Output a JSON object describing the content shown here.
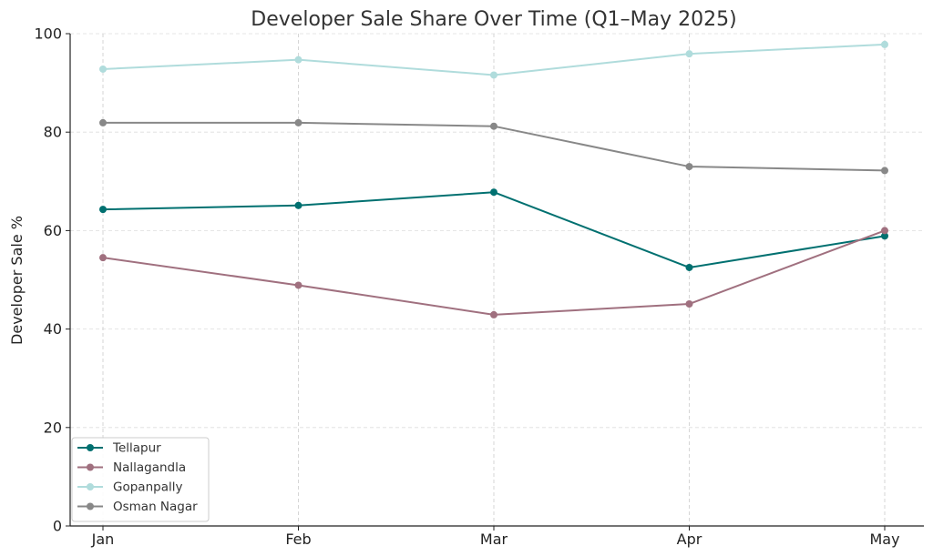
{
  "chart_data": {
    "type": "line",
    "title": "Developer Sale Share Over Time (Q1–May 2025)",
    "xlabel": "",
    "ylabel": "Developer Sale %",
    "categories": [
      "Jan",
      "Feb",
      "Mar",
      "Apr",
      "May"
    ],
    "ylim": [
      0,
      100
    ],
    "yticks": [
      0,
      20,
      40,
      60,
      80,
      100
    ],
    "grid": true,
    "legend_position": "bottom-left",
    "series": [
      {
        "name": "Tellapur",
        "color": "#007070",
        "values": [
          64.3,
          65.1,
          67.8,
          52.5,
          58.9
        ]
      },
      {
        "name": "Nallagandla",
        "color": "#a0707f",
        "values": [
          54.5,
          48.9,
          42.9,
          45.1,
          60.0
        ]
      },
      {
        "name": "Gopanpally",
        "color": "#b0dcdc",
        "values": [
          92.8,
          94.7,
          91.6,
          95.9,
          97.8
        ]
      },
      {
        "name": "Osman Nagar",
        "color": "#888888",
        "values": [
          81.9,
          81.9,
          81.2,
          73.0,
          72.2
        ]
      }
    ]
  }
}
